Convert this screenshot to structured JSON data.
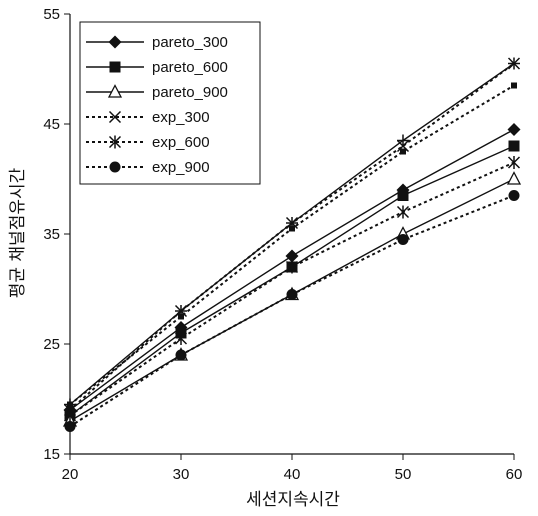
{
  "chart_data": {
    "type": "line",
    "xlabel": "세션지속시간",
    "ylabel": "평균 채널점유시간",
    "x": [
      20,
      30,
      40,
      50,
      60
    ],
    "xticks": [
      20,
      30,
      40,
      50,
      60
    ],
    "yticks": [
      15,
      25,
      35,
      45,
      55
    ],
    "xlim": [
      20,
      60
    ],
    "ylim": [
      15,
      55
    ],
    "grid": false,
    "legend_position": "top-left",
    "series": [
      {
        "name": "pareto_300",
        "values": [
          19.0,
          26.5,
          33.0,
          39.0,
          44.5
        ],
        "marker": "diamond",
        "line": "solid"
      },
      {
        "name": "pareto_600",
        "values": [
          18.5,
          26.0,
          32.0,
          38.5,
          43.0
        ],
        "marker": "square",
        "line": "solid"
      },
      {
        "name": "pareto_900",
        "values": [
          18.0,
          24.0,
          29.5,
          35.0,
          40.0
        ],
        "marker": "triangle",
        "line": "solid"
      },
      {
        "name": "exp_300",
        "values": [
          19.0,
          28.0,
          36.0,
          43.0,
          50.5
        ],
        "marker": "x",
        "line": "dotted"
      },
      {
        "name": "exp_600",
        "values": [
          18.5,
          25.5,
          32.0,
          37.0,
          41.5
        ],
        "marker": "asterisk",
        "line": "dotted"
      },
      {
        "name": "exp_900",
        "values": [
          17.5,
          24.0,
          29.5,
          34.5,
          38.5
        ],
        "marker": "circle",
        "line": "dotted"
      }
    ],
    "extra_series": [
      {
        "values": [
          19.5,
          28.0,
          36.0,
          43.5,
          50.5
        ],
        "marker": "plus",
        "line": "solid"
      },
      {
        "values": [
          19.5,
          27.5,
          35.5,
          42.5,
          48.5
        ],
        "marker": "small-square",
        "line": "dotted"
      }
    ]
  }
}
